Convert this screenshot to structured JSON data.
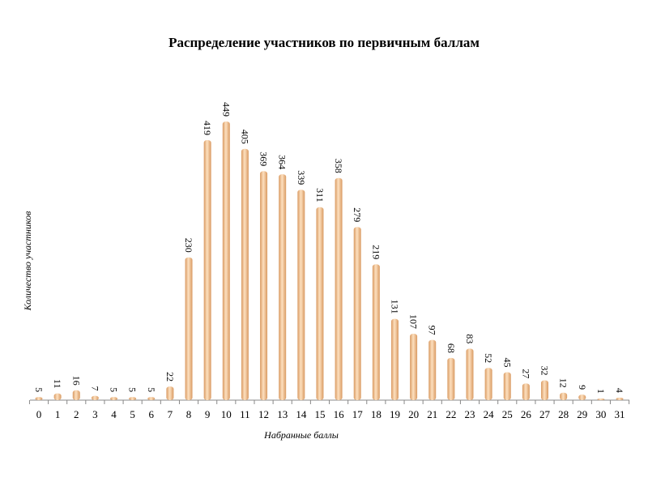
{
  "chart_data": {
    "type": "bar",
    "title": "Распределение участников по первичным баллам",
    "xlabel": "Набранные баллы",
    "ylabel": "Количество участников",
    "categories": [
      "0",
      "1",
      "2",
      "3",
      "4",
      "5",
      "6",
      "7",
      "8",
      "9",
      "10",
      "11",
      "12",
      "13",
      "14",
      "15",
      "16",
      "17",
      "18",
      "19",
      "20",
      "21",
      "22",
      "23",
      "24",
      "25",
      "26",
      "27",
      "28",
      "29",
      "30",
      "31"
    ],
    "values": [
      5,
      11,
      16,
      7,
      5,
      5,
      5,
      22,
      230,
      419,
      449,
      405,
      369,
      364,
      339,
      311,
      358,
      279,
      219,
      131,
      107,
      97,
      68,
      83,
      52,
      45,
      27,
      32,
      12,
      9,
      1,
      4
    ],
    "ylim": [
      0,
      449
    ],
    "grid": false,
    "legend": "none",
    "bar_color": "#f5c08e",
    "bar_shade": "#d99a62"
  }
}
